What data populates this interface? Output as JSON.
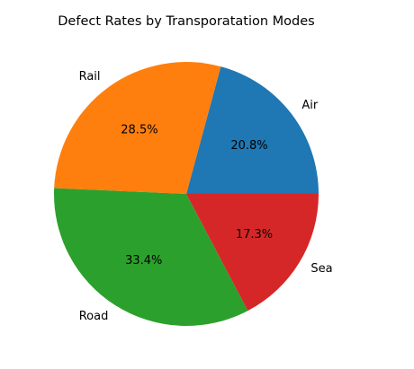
{
  "chart_data": {
    "type": "pie",
    "title": "Defect Rates by Transporatation Modes",
    "labels": [
      "Air",
      "Rail",
      "Road",
      "Sea"
    ],
    "values": [
      20.8,
      28.5,
      33.4,
      17.3
    ],
    "value_labels": [
      "20.8%",
      "28.5%",
      "33.4%",
      "17.3%"
    ],
    "colors": [
      "#1f77b4",
      "#ff7f0e",
      "#2ca02c",
      "#d62728"
    ],
    "start_angle": 0,
    "direction": "counterclockwise",
    "legend": "none"
  }
}
